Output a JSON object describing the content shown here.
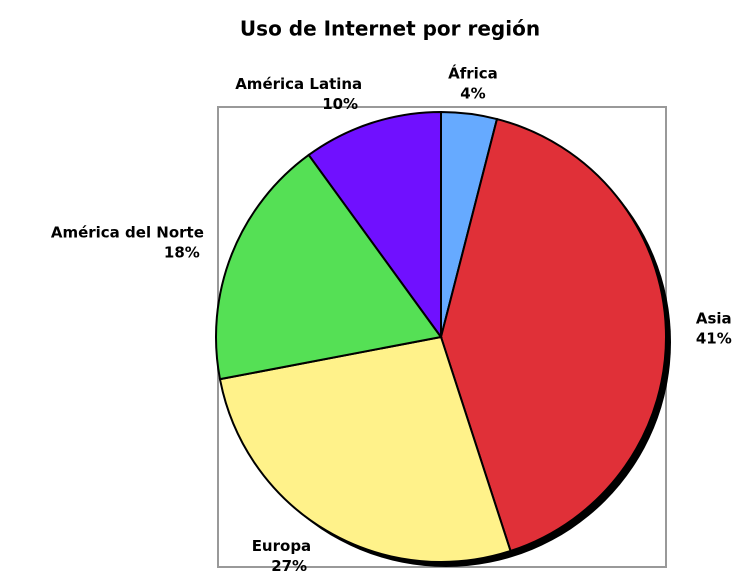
{
  "chart_data": {
    "type": "pie",
    "title": "Uso de Internet por región",
    "categories": [
      "África",
      "Asia",
      "Europa",
      "América del Norte",
      "América Latina"
    ],
    "values": [
      4,
      41,
      27,
      18,
      10
    ],
    "value_labels": [
      "4%",
      "41%",
      "27%",
      "18%",
      "10%"
    ],
    "colors": [
      "#66aaff",
      "#e03038",
      "#fff28a",
      "#55e055",
      "#7010ff"
    ]
  }
}
